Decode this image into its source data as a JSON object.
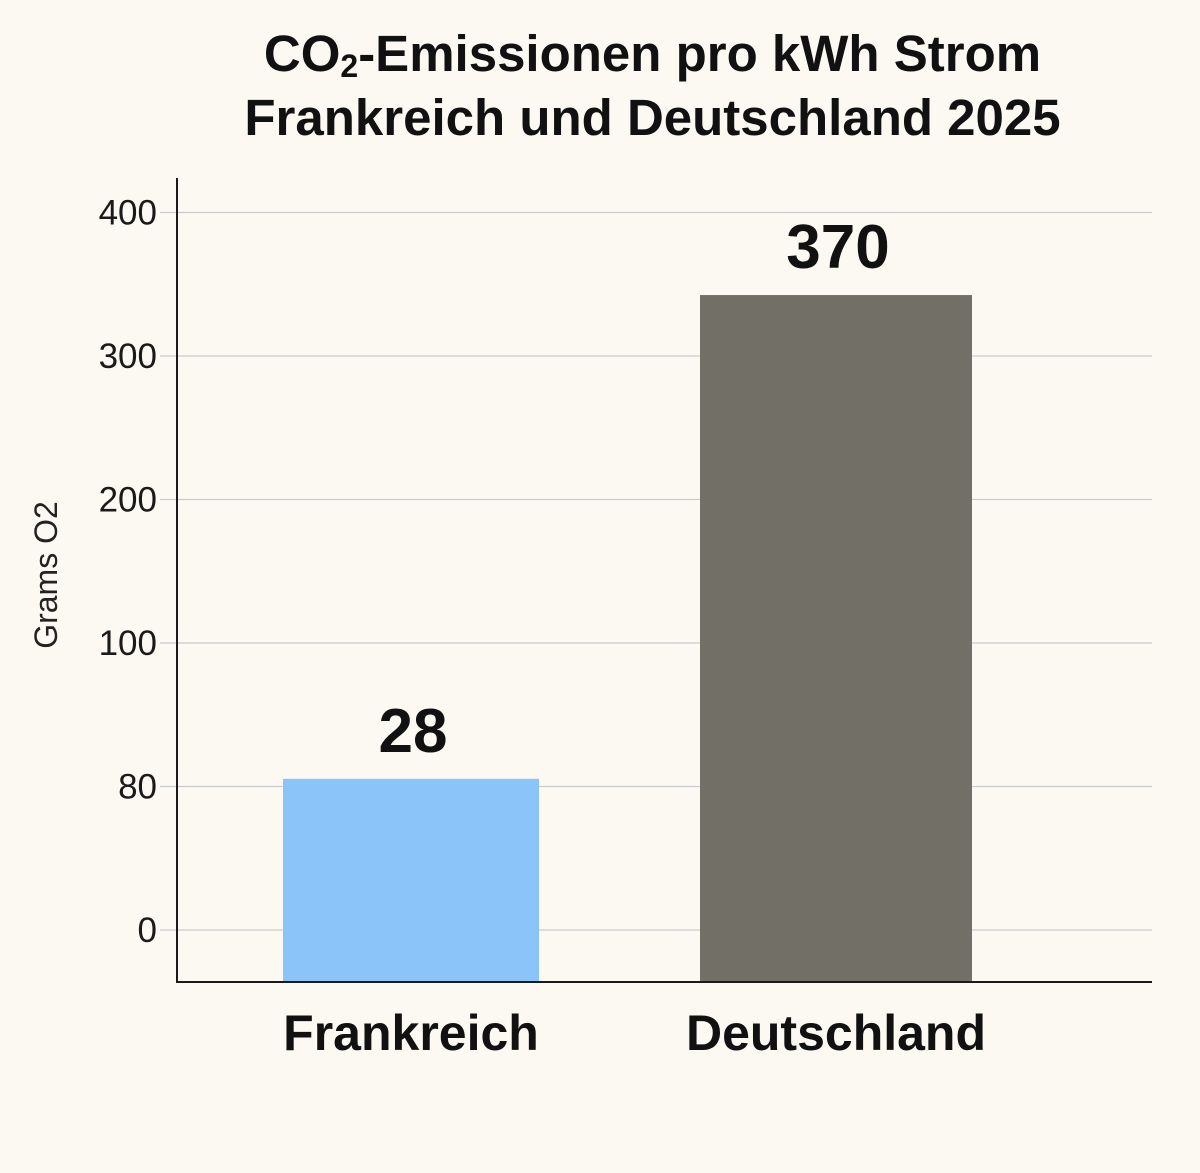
{
  "chart_data": {
    "type": "bar",
    "title": {
      "line1_main": "CO",
      "line1_sub": "2",
      "line1_rest": "-Emissionen pro kWh Strom",
      "line2": "Frankreich und Deutschland 2025"
    },
    "xlabel": "",
    "ylabel": "Grams O2",
    "categories": [
      "Frankreich",
      "Deutschland"
    ],
    "values": [
      28,
      370
    ],
    "data_labels": [
      "28",
      "370"
    ],
    "y_ticks": [
      "0",
      "80",
      "100",
      "200",
      "300",
      "400"
    ],
    "ylim": [
      0,
      400
    ],
    "grid": true,
    "legend": "none",
    "colors": {
      "Frankreich": "#8ac4f8",
      "Deutschland": "#727066",
      "gridline": "#c9cbcc",
      "axis": "#1a1a1a",
      "background": "#fcf9f3"
    }
  }
}
